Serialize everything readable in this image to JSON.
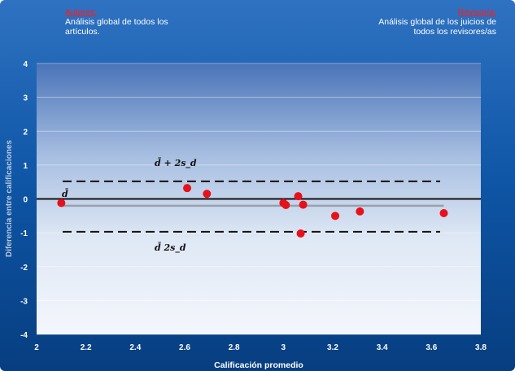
{
  "header": {
    "left_title": "Autores:",
    "left_text_1": "Análisis global de todos los",
    "left_text_2": "artículos.",
    "right_title": "Revisor/a:",
    "right_text_1": "Análisis global de los juicios de",
    "right_text_2": "todos los revisores/as"
  },
  "colors": {
    "background_outer": "#0a4f9a",
    "plot_top": "#4a74b8",
    "plot_bottom": "#f2f5fb",
    "points": "#e8101a",
    "mean_line": "#9aa0aa",
    "limit_lines": "#111111",
    "zero_line": "#111111"
  },
  "chart_data": {
    "type": "scatter",
    "xlabel": "Calificación promedio",
    "ylabel": "Diferencia entre calificaciones",
    "xlim": [
      2,
      3.8
    ],
    "ylim": [
      -4,
      4
    ],
    "xticks": [
      "2",
      "2.2",
      "2.4",
      "2.6",
      "2.8",
      "3",
      "3.2",
      "3.4",
      "3.6",
      "3.8"
    ],
    "yticks": [
      "-4",
      "-3",
      "-2",
      "-1",
      "0",
      "1",
      "2",
      "3",
      "4"
    ],
    "grid": "horizontal",
    "points": [
      {
        "x": 2.1,
        "y": -0.12
      },
      {
        "x": 2.61,
        "y": 0.32
      },
      {
        "x": 2.69,
        "y": 0.15
      },
      {
        "x": 3.0,
        "y": -0.12
      },
      {
        "x": 3.01,
        "y": -0.18
      },
      {
        "x": 3.06,
        "y": 0.08
      },
      {
        "x": 3.07,
        "y": -1.02
      },
      {
        "x": 3.08,
        "y": -0.17
      },
      {
        "x": 3.21,
        "y": -0.5
      },
      {
        "x": 3.31,
        "y": -0.37
      },
      {
        "x": 3.65,
        "y": -0.42
      }
    ],
    "mean_line": {
      "y": -0.2,
      "label": "d̄"
    },
    "upper_limit": {
      "y": 0.52,
      "label": "d̄ + 2s_d"
    },
    "lower_limit": {
      "y": -0.97,
      "label": "d̄   2s_d"
    }
  }
}
